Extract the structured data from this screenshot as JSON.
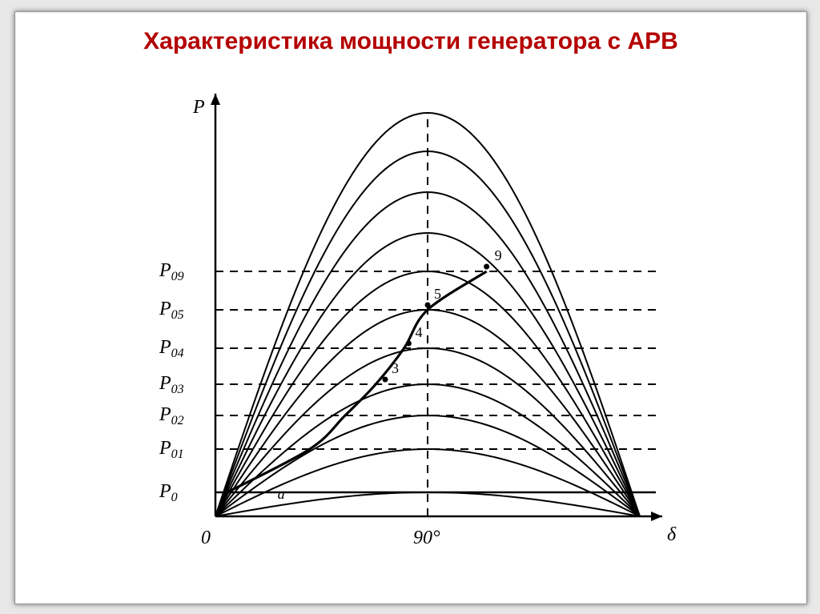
{
  "title": "Характеристика мощности генератора с АРВ",
  "title_color": "#b40000",
  "title_fontsize": 30,
  "background_color": "#ffffff",
  "frame_shadow_color": "#888888",
  "chart": {
    "type": "line-family",
    "x_axis": {
      "label": "δ",
      "min": 0,
      "max": 180,
      "tick_90_label": "90°",
      "origin_label": "0"
    },
    "y_axis": {
      "label": "P",
      "min": 0,
      "max": 1.7
    },
    "axis_color": "#000000",
    "axis_width": 2.5,
    "dash_pattern": "10,8",
    "dash_width": 2,
    "curve_color": "#000000",
    "curve_width": 2,
    "sine_curves_amplitude": [
      0.1,
      0.28,
      0.42,
      0.55,
      0.7,
      0.86,
      1.02,
      1.18,
      1.35,
      1.52,
      1.68
    ],
    "horizontal_dashed_levels": {
      "P0": {
        "label": "P",
        "sub": "0",
        "y": 0.1
      },
      "P01": {
        "label": "P",
        "sub": "01",
        "y": 0.28
      },
      "P02": {
        "label": "P",
        "sub": "02",
        "y": 0.42
      },
      "P03": {
        "label": "P",
        "sub": "03",
        "y": 0.55
      },
      "P04": {
        "label": "P",
        "sub": "04",
        "y": 0.7
      },
      "P05": {
        "label": "P",
        "sub": "05",
        "y": 0.86
      },
      "P09": {
        "label": "P",
        "sub": "09",
        "y": 1.02
      }
    },
    "vertical_dashed_at_deg": 90,
    "operating_curve_points_deg_p": [
      [
        5,
        0.1
      ],
      [
        40,
        0.28
      ],
      [
        55,
        0.42
      ],
      [
        68,
        0.55
      ],
      [
        80,
        0.7
      ],
      [
        90,
        0.86
      ],
      [
        115,
        1.02
      ]
    ],
    "point_labels": {
      "a": {
        "text": "a",
        "deg": 25,
        "p": 0.14
      },
      "3": {
        "text": "3",
        "deg": 72,
        "p": 0.57
      },
      "4": {
        "text": "4",
        "deg": 82,
        "p": 0.72
      },
      "5": {
        "text": "5",
        "deg": 90,
        "p": 0.88
      },
      "9": {
        "text": "9",
        "deg": 115,
        "p": 1.04
      }
    },
    "marker_radius": 3.5
  }
}
